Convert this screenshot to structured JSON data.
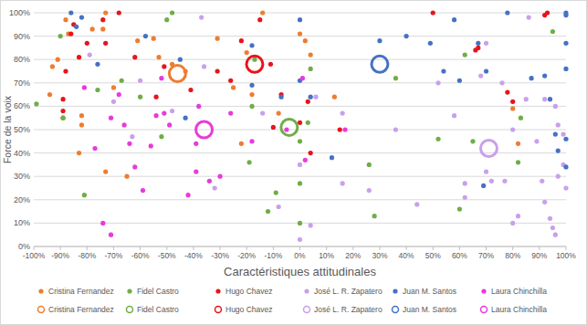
{
  "chart_data": {
    "type": "scatter",
    "x_label": "Caractéristiques attitudinales",
    "y_label": "Force de la voix",
    "xlim": [
      -100,
      100
    ],
    "ylim": [
      0,
      100
    ],
    "xticks": [
      {
        "value": -100,
        "label": "-100%"
      },
      {
        "value": -90,
        "label": "-90%"
      },
      {
        "value": -80,
        "label": "-80%"
      },
      {
        "value": -70,
        "label": "-70%"
      },
      {
        "value": -60,
        "label": "-60%"
      },
      {
        "value": -50,
        "label": "-50%"
      },
      {
        "value": -40,
        "label": "-40%"
      },
      {
        "value": -30,
        "label": "-30%"
      },
      {
        "value": -20,
        "label": "-20%"
      },
      {
        "value": -10,
        "label": "-10%"
      },
      {
        "value": 0,
        "label": "0%"
      },
      {
        "value": 10,
        "label": "10%"
      },
      {
        "value": 20,
        "label": "20%"
      },
      {
        "value": 30,
        "label": "30%"
      },
      {
        "value": 40,
        "label": "40%"
      },
      {
        "value": 50,
        "label": "50%"
      },
      {
        "value": 60,
        "label": "60%"
      },
      {
        "value": 70,
        "label": "70%"
      },
      {
        "value": 80,
        "label": "80%"
      },
      {
        "value": 90,
        "label": "90%"
      },
      {
        "value": 100,
        "label": "100%"
      }
    ],
    "yticks": [
      {
        "value": 0,
        "label": "0%"
      },
      {
        "value": 10,
        "label": "10%"
      },
      {
        "value": 20,
        "label": "20%"
      },
      {
        "value": 30,
        "label": "30%"
      },
      {
        "value": 40,
        "label": "40%"
      },
      {
        "value": 50,
        "label": "50%"
      },
      {
        "value": 60,
        "label": "60%"
      },
      {
        "value": 70,
        "label": "70%"
      },
      {
        "value": 80,
        "label": "80%"
      },
      {
        "value": 90,
        "label": "90%"
      },
      {
        "value": 100,
        "label": "100%"
      }
    ],
    "grid": "y",
    "legend": "bottom",
    "series": [
      {
        "name": "Cristina Fernandez",
        "color": "#ED7D31",
        "marker": "dot",
        "x": [
          -88,
          -91,
          -93,
          -94,
          -87,
          -82,
          -82,
          -83,
          -78,
          -74,
          -73,
          -73,
          -70,
          -65,
          -61,
          -55,
          -53,
          -48,
          -43,
          -31,
          -25,
          -22,
          -20,
          -14,
          -18,
          -8,
          0,
          2,
          4,
          13,
          80,
          82,
          -89
        ],
        "values": [
          97,
          80,
          77,
          65,
          91,
          52,
          56,
          40,
          93,
          93,
          32,
          100,
          68,
          30,
          88,
          89,
          81,
          78,
          75,
          89,
          68,
          44,
          83,
          100,
          65,
          57,
          91,
          88,
          82,
          64,
          59,
          44,
          55
        ]
      },
      {
        "name": "Fidel Castro",
        "color": "#70AD47",
        "marker": "dot",
        "x": [
          -99,
          -90,
          -89,
          -81,
          -76,
          -67,
          -60,
          -50,
          -52,
          -19,
          -17,
          -18,
          -12,
          -9,
          0,
          0,
          4,
          3,
          0,
          26,
          28,
          36,
          52,
          60,
          62,
          65,
          82,
          95,
          -48,
          83
        ],
        "values": [
          61,
          90,
          55,
          22,
          67,
          71,
          64,
          97,
          47,
          36,
          80,
          60,
          15,
          23,
          27,
          10,
          76,
          53,
          45,
          35,
          13,
          72,
          46,
          16,
          82,
          45,
          36,
          92,
          100,
          55
        ]
      },
      {
        "name": "Hugo Chavez",
        "color": "#E8141C",
        "marker": "dot",
        "x": [
          -85,
          -86,
          -89,
          -89,
          -88,
          -80,
          -74,
          -73,
          -68,
          -62,
          -54,
          -51,
          -41,
          -31,
          -22,
          -15,
          -11,
          -10,
          -7,
          0,
          3,
          4,
          15,
          50,
          66,
          67,
          78,
          80,
          -83,
          92,
          93,
          -26
        ],
        "values": [
          95,
          91,
          63,
          58,
          75,
          87,
          97,
          87,
          100,
          81,
          64,
          77,
          67,
          75,
          88,
          97,
          78,
          51,
          65,
          53,
          62,
          40,
          50,
          100,
          84,
          85,
          66,
          62,
          81,
          99,
          100,
          71
        ]
      },
      {
        "name": "José L. R. Zapatero",
        "color": "#C9A0EC",
        "marker": "dot",
        "x": [
          -79,
          -70,
          -63,
          -60,
          -48,
          -37,
          -36,
          -32,
          -14,
          -8,
          0,
          0,
          4,
          6,
          16,
          16,
          26,
          36,
          44,
          52,
          58,
          62,
          62,
          68,
          70,
          70,
          72,
          76,
          77,
          80,
          80,
          82,
          85,
          86,
          89,
          91,
          92,
          92,
          94,
          95,
          96,
          97,
          97,
          99,
          100,
          99,
          96
        ],
        "values": [
          82,
          62,
          47,
          71,
          58,
          98,
          77,
          25,
          57,
          17,
          35,
          3,
          9,
          64,
          57,
          27,
          24,
          50,
          18,
          70,
          56,
          27,
          21,
          73,
          87,
          32,
          28,
          70,
          28,
          50,
          10,
          13,
          63,
          98,
          45,
          28,
          63,
          19,
          12,
          8,
          60,
          52,
          30,
          48,
          25,
          35,
          5
        ]
      },
      {
        "name": "Juan M. Santos",
        "color": "#4472C4",
        "marker": "dot",
        "x": [
          -86,
          -84,
          -82,
          -76,
          -58,
          -45,
          -43,
          -18,
          -18,
          -7,
          0,
          0,
          4,
          12,
          30,
          40,
          49,
          54,
          58,
          60,
          67,
          69,
          70,
          78,
          87,
          92,
          94,
          96,
          97,
          100,
          100,
          100,
          100,
          100,
          100
        ],
        "values": [
          100,
          94,
          98,
          78,
          90,
          80,
          55,
          86,
          69,
          64,
          97,
          71,
          64,
          38,
          88,
          90,
          87,
          75,
          97,
          71,
          87,
          26,
          75,
          100,
          72,
          73,
          63,
          48,
          41,
          100,
          99,
          87,
          76,
          34,
          46
        ]
      },
      {
        "name": "Laura Chinchilla",
        "color": "#E83ADB",
        "marker": "dot",
        "x": [
          -81,
          -77,
          -74,
          -71,
          -68,
          -66,
          -64,
          -62,
          -59,
          -56,
          -54,
          -52,
          -51,
          -49,
          -42,
          -39,
          -38,
          -34,
          -30,
          -26,
          -18,
          -5,
          2,
          17,
          -71,
          -39,
          1
        ],
        "values": [
          68,
          42,
          10,
          5,
          65,
          52,
          44,
          34,
          24,
          43,
          56,
          72,
          57,
          52,
          22,
          32,
          60,
          28,
          30,
          57,
          45,
          50,
          37,
          50,
          55,
          44,
          72
        ]
      },
      {
        "name": "Cristina Fernandez",
        "color": "#ED7D31",
        "marker": "ring",
        "x": [
          -46
        ],
        "values": [
          74
        ]
      },
      {
        "name": "Fidel Castro",
        "color": "#70AD47",
        "marker": "ring",
        "x": [
          -4
        ],
        "values": [
          51
        ]
      },
      {
        "name": "Hugo Chavez",
        "color": "#E8141C",
        "marker": "ring",
        "x": [
          -17
        ],
        "values": [
          78
        ]
      },
      {
        "name": "José L. R. Zapatero",
        "color": "#C9A0EC",
        "marker": "ring",
        "x": [
          71
        ],
        "values": [
          42
        ]
      },
      {
        "name": "Juan M. Santos",
        "color": "#4472C4",
        "marker": "ring",
        "x": [
          30
        ],
        "values": [
          78
        ]
      },
      {
        "name": "Laura Chinchilla",
        "color": "#E83ADB",
        "marker": "ring",
        "x": [
          -36
        ],
        "values": [
          50
        ]
      }
    ]
  }
}
